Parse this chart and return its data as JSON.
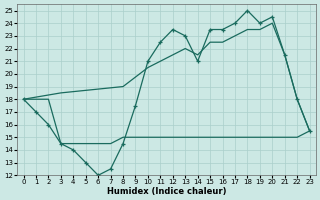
{
  "xlabel": "Humidex (Indice chaleur)",
  "xlim": [
    -0.5,
    23.5
  ],
  "ylim": [
    12,
    25.5
  ],
  "yticks": [
    12,
    13,
    14,
    15,
    16,
    17,
    18,
    19,
    20,
    21,
    22,
    23,
    24,
    25
  ],
  "xticks": [
    0,
    1,
    2,
    3,
    4,
    5,
    6,
    7,
    8,
    9,
    10,
    11,
    12,
    13,
    14,
    15,
    16,
    17,
    18,
    19,
    20,
    21,
    22,
    23
  ],
  "bg_color": "#cce8e4",
  "line_color": "#1a6b5e",
  "grid_color": "#aacfcb",
  "line1_x": [
    0,
    1,
    2,
    3,
    4,
    5,
    6,
    7,
    8,
    9,
    10,
    11,
    12,
    13,
    14,
    15,
    16,
    17,
    18,
    19,
    20,
    21,
    22,
    23
  ],
  "line1_y": [
    18.0,
    17.0,
    16.0,
    14.5,
    14.0,
    13.0,
    12.0,
    12.5,
    14.5,
    17.5,
    21.0,
    22.5,
    23.5,
    23.0,
    21.0,
    23.5,
    23.5,
    24.0,
    25.0,
    24.0,
    24.5,
    21.5,
    18.0,
    15.5
  ],
  "line2_x": [
    0,
    1,
    2,
    3,
    4,
    5,
    6,
    7,
    8,
    9,
    10,
    11,
    12,
    13,
    14,
    15,
    16,
    17,
    18,
    19,
    20,
    21,
    22,
    23
  ],
  "line2_y": [
    18.0,
    18.0,
    18.0,
    14.5,
    14.5,
    14.5,
    14.5,
    14.5,
    15.0,
    15.0,
    15.0,
    15.0,
    15.0,
    15.0,
    15.0,
    15.0,
    15.0,
    15.0,
    15.0,
    15.0,
    15.0,
    15.0,
    15.0,
    15.5
  ],
  "line3_x": [
    0,
    3,
    8,
    10,
    11,
    12,
    13,
    14,
    15,
    16,
    17,
    18,
    19,
    20,
    21,
    22,
    23
  ],
  "line3_y": [
    18.0,
    18.5,
    19.0,
    20.5,
    21.0,
    21.5,
    22.0,
    21.5,
    22.5,
    22.5,
    23.0,
    23.5,
    23.5,
    24.0,
    21.5,
    18.0,
    15.5
  ]
}
